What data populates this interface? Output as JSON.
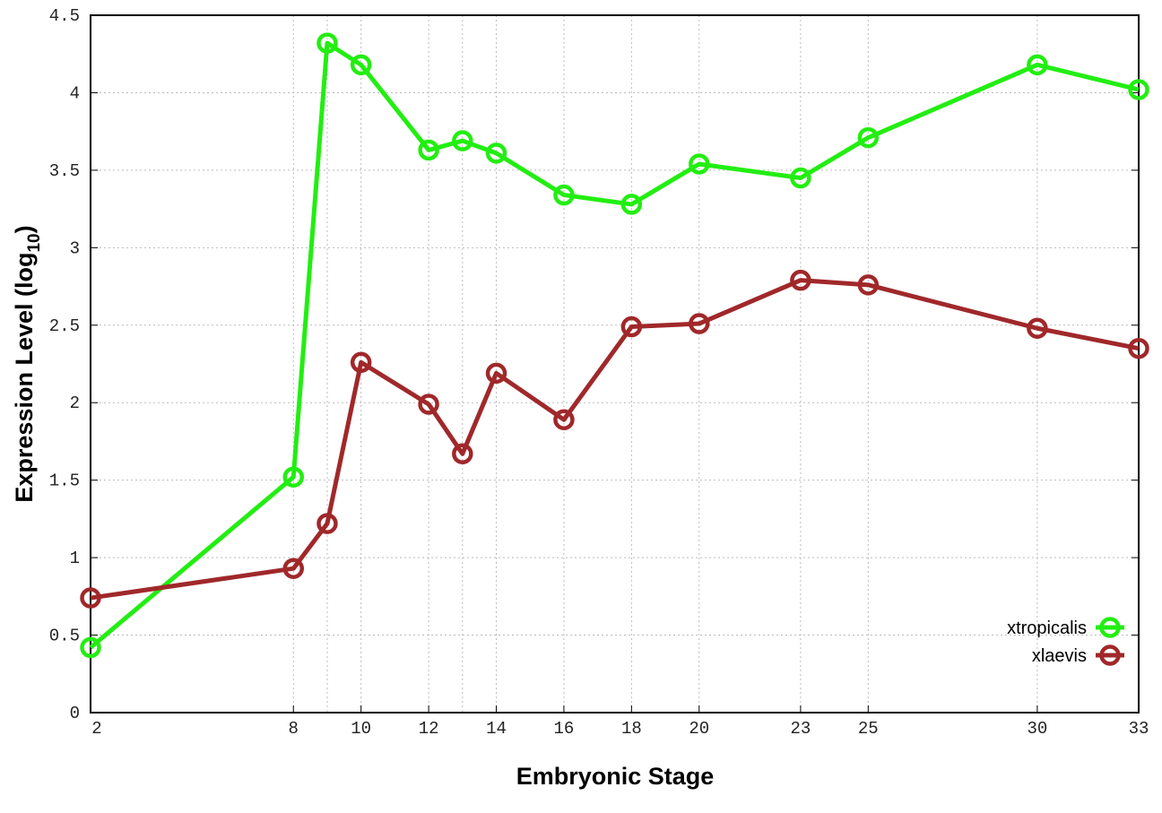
{
  "chart_data": {
    "type": "line",
    "title": "",
    "xlabel": "Embryonic Stage",
    "ylabel": "Expression Level (log",
    "ylabel_sub": "10",
    "ylabel_end": ")",
    "x": [
      2,
      8,
      9,
      10,
      12,
      13,
      14,
      16,
      18,
      20,
      23,
      25,
      30,
      33
    ],
    "x_ticks": [
      2,
      8,
      10,
      12,
      14,
      16,
      18,
      20,
      23,
      25,
      30,
      33
    ],
    "x_grid": [
      8,
      9,
      10,
      12,
      13,
      14,
      16,
      18,
      20,
      23,
      25,
      30
    ],
    "y_ticks": [
      "0",
      "0.5",
      "1",
      "1.5",
      "2",
      "2.5",
      "3",
      "3.5",
      "4",
      "4.5"
    ],
    "xlim": [
      2,
      33
    ],
    "ylim": [
      0,
      4.5
    ],
    "grid": true,
    "legend_position": "bottom-right",
    "series": [
      {
        "name": "xtropicalis",
        "color": "#22ee11",
        "values": [
          0.42,
          1.52,
          4.32,
          4.18,
          3.63,
          3.69,
          3.61,
          3.34,
          3.28,
          3.54,
          3.45,
          3.71,
          4.18,
          4.02
        ]
      },
      {
        "name": "xlaevis",
        "color": "#a0282a",
        "values": [
          0.74,
          0.93,
          1.22,
          2.26,
          1.99,
          1.67,
          2.19,
          1.89,
          2.49,
          2.51,
          2.79,
          2.76,
          2.48,
          2.35
        ]
      }
    ]
  }
}
